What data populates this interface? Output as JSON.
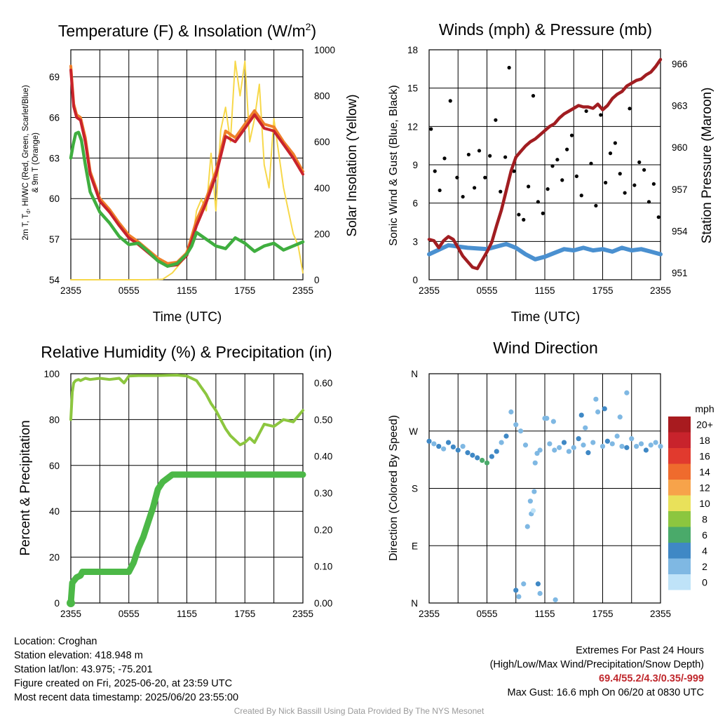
{
  "chart_data": [
    {
      "type": "line",
      "title_text": "Temperature (F) & Insolation (W/m",
      "title_sup": "2",
      "title_close": ")",
      "ylabel_left": [
        "2m T, T",
        "d",
        ", HI/WC (Red, Green, Scarlet/Blue)",
        "& 9m T (Orange)"
      ],
      "ylabel_right": "Solar Insolation (Yellow)",
      "xlabel": "Time (UTC)",
      "x_ticks": [
        "2355",
        "0555",
        "1155",
        "1755",
        "2355"
      ],
      "ylim": [
        54,
        71
      ],
      "y_ticks": [
        54,
        57,
        60,
        63,
        66,
        69
      ],
      "y2lim": [
        0,
        1000
      ],
      "y2_ticks": [
        0,
        200,
        400,
        600,
        800,
        1000
      ],
      "series": [
        {
          "axis": "left",
          "color": "#ef7f2a",
          "x": [
            0,
            0.3,
            0.6,
            1,
            1.5,
            2,
            3,
            4,
            5,
            6,
            7,
            8,
            9,
            10,
            11,
            12,
            13,
            14,
            15,
            16,
            17,
            18,
            19,
            20,
            21,
            22,
            23,
            24
          ],
          "values": [
            69.8,
            67,
            66.2,
            66,
            64.5,
            62,
            60,
            59.2,
            58.2,
            57.3,
            56.8,
            56.2,
            55.6,
            55.2,
            55.3,
            56,
            58.4,
            60,
            62,
            65,
            64.5,
            65.5,
            66.5,
            65.5,
            65.3,
            64.2,
            63.3,
            62
          ]
        },
        {
          "axis": "left",
          "color": "#c8232c",
          "x": [
            0,
            0.3,
            0.6,
            1,
            1.5,
            2,
            3,
            4,
            5,
            6,
            7,
            8,
            9,
            10,
            11,
            12,
            13,
            14,
            15,
            16,
            17,
            18,
            19,
            20,
            21,
            22,
            23,
            24
          ],
          "values": [
            69.5,
            66.8,
            66,
            65.8,
            64.2,
            61.8,
            59.8,
            59,
            58,
            57.1,
            56.6,
            56,
            55.4,
            55,
            55.1,
            55.8,
            58,
            59.7,
            61.7,
            64.6,
            64.2,
            65.2,
            66.2,
            65.2,
            65,
            64,
            63,
            61.8
          ]
        },
        {
          "axis": "left",
          "color": "#3fae3f",
          "x": [
            0,
            0.25,
            0.5,
            0.8,
            1.1,
            1.5,
            2,
            3,
            4,
            5,
            6,
            7,
            8,
            9,
            10,
            11,
            12,
            12.5,
            13,
            14,
            15,
            16,
            17,
            18,
            19,
            20,
            21,
            22,
            23,
            24
          ],
          "values": [
            63,
            64,
            64.8,
            64.9,
            64.3,
            62.5,
            60.5,
            59,
            58.2,
            57.2,
            56.6,
            56.7,
            56.1,
            55.4,
            55,
            55.2,
            55.9,
            56.5,
            57.5,
            57,
            56.5,
            56.3,
            57.1,
            56.7,
            56.1,
            56.5,
            56.7,
            56.2,
            56.5,
            56.8
          ]
        },
        {
          "axis": "right",
          "color": "#f7d84a",
          "x": [
            0,
            2,
            4,
            6,
            8,
            9.5,
            10.5,
            11.5,
            12,
            12.5,
            13,
            13.5,
            14,
            14.5,
            15,
            15.5,
            16,
            16.5,
            17,
            17.5,
            18,
            18.5,
            19,
            19.5,
            20,
            20.5,
            21,
            22,
            22.5,
            23,
            23.5,
            24
          ],
          "values": [
            0,
            0,
            0,
            0,
            0,
            2,
            30,
            80,
            130,
            150,
            300,
            350,
            300,
            550,
            300,
            650,
            750,
            600,
            950,
            800,
            950,
            600,
            700,
            850,
            500,
            400,
            700,
            400,
            300,
            200,
            150,
            30
          ]
        }
      ]
    },
    {
      "type": "scatter",
      "title": "Winds (mph) & Pressure (mb)",
      "ylabel_left": "Sonic Wind & Gust (Blue, Black)",
      "ylabel_right": "Station Pressure (Maroon)",
      "xlabel": "Time (UTC)",
      "x_ticks": [
        "2355",
        "0555",
        "1155",
        "1755",
        "2355"
      ],
      "ylim": [
        0,
        18
      ],
      "y_ticks": [
        0,
        3,
        6,
        9,
        12,
        15,
        18
      ],
      "y2lim": [
        950.5,
        967
      ],
      "y2_ticks": [
        951,
        954,
        957,
        960,
        963,
        966
      ],
      "series": [
        {
          "name": "Pressure",
          "axis": "right",
          "color": "#a11d21",
          "x": [
            0,
            0.5,
            1,
            1.5,
            2,
            2.5,
            3,
            3.5,
            4,
            4.5,
            5,
            5.5,
            6,
            6.5,
            7,
            7.5,
            8,
            8.5,
            9,
            9.5,
            10,
            10.5,
            11,
            11.5,
            12,
            12.5,
            13,
            13.5,
            14,
            14.5,
            15,
            15.5,
            16,
            16.5,
            17,
            17.5,
            18,
            18.5,
            19,
            19.5,
            20,
            20.5,
            21,
            21.5,
            22,
            22.5,
            23,
            23.5,
            24
          ],
          "values": [
            953.4,
            953.3,
            952.8,
            953.3,
            953.6,
            953.4,
            952.8,
            952.2,
            951.8,
            951.4,
            951.3,
            951.9,
            952.5,
            953.2,
            954.4,
            955.5,
            956.9,
            958.3,
            959.3,
            959.7,
            960.1,
            960.4,
            960.6,
            960.9,
            961.2,
            961.5,
            961.7,
            962.1,
            962.4,
            962.6,
            962.8,
            963,
            962.9,
            962.9,
            962.8,
            963.1,
            962.7,
            963,
            963.5,
            963.8,
            964,
            964.4,
            964.6,
            964.8,
            964.9,
            965.2,
            965.4,
            965.8,
            966.3
          ]
        },
        {
          "name": "Sonic Wind",
          "axis": "left",
          "color": "#4a90d0",
          "x": [
            0,
            2,
            4,
            6,
            8,
            9,
            10,
            11,
            12,
            13,
            14,
            15,
            16,
            17,
            18,
            19,
            20,
            21,
            22,
            23,
            24
          ],
          "values": [
            2,
            2.7,
            2.5,
            2.4,
            2.8,
            2.5,
            2,
            1.6,
            1.8,
            2.1,
            2.4,
            2.3,
            2.5,
            2.3,
            2.4,
            2.2,
            2.5,
            2.3,
            2.4,
            2.2,
            2
          ]
        },
        {
          "name": "Gust",
          "axis": "left",
          "color": "#000000",
          "x": [
            0.2,
            0.6,
            1.1,
            1.6,
            2.2,
            2.9,
            3.5,
            4.1,
            4.7,
            5.2,
            5.8,
            6.3,
            6.9,
            7.4,
            7.9,
            8.3,
            8.8,
            9.3,
            9.8,
            10.3,
            10.8,
            11.3,
            11.8,
            12.3,
            12.8,
            13.3,
            13.8,
            14.3,
            14.8,
            15.3,
            15.8,
            16.3,
            16.8,
            17.3,
            17.8,
            18.3,
            18.8,
            19.3,
            19.8,
            20.3,
            20.8,
            21.3,
            21.8,
            22.3,
            22.8,
            23.3,
            23.8
          ],
          "values": [
            11.8,
            8.5,
            7,
            9.5,
            14,
            8,
            6.5,
            9.8,
            7.2,
            10.1,
            8,
            9.7,
            12.5,
            6.9,
            9.6,
            16.6,
            8.5,
            5.1,
            4.7,
            7.3,
            14.4,
            6.1,
            5.2,
            7.1,
            8.9,
            9.4,
            7.8,
            10.2,
            11.3,
            8.1,
            6.6,
            13.2,
            9.1,
            5.8,
            12.9,
            7.6,
            9.9,
            10.7,
            8.3,
            6.8,
            13.4,
            7.4,
            9.2,
            8.6,
            6.1,
            7.5,
            4.9
          ]
        }
      ]
    },
    {
      "type": "line",
      "title": "Relative Humidity (%) & Precipitation (in)",
      "ylabel_left": "Percent & Precipitation",
      "x_ticks": [
        "2355",
        "0555",
        "1155",
        "1755",
        "2355"
      ],
      "ylim": [
        0,
        100
      ],
      "y_ticks": [
        0,
        20,
        40,
        60,
        80,
        100
      ],
      "y2lim": [
        0,
        0.625
      ],
      "y2_ticks": [
        "0.00",
        "0.10",
        "0.20",
        "0.30",
        "0.40",
        "0.50",
        "0.60"
      ],
      "series": [
        {
          "name": "Relative Humidity",
          "axis": "left",
          "color": "#8cc63f",
          "x": [
            0,
            0.15,
            0.3,
            0.5,
            0.8,
            1,
            1.5,
            2,
            3,
            4,
            5,
            5.5,
            6,
            7,
            8,
            9,
            10,
            11,
            12,
            13,
            13.5,
            14,
            14.5,
            15,
            15.5,
            16,
            16.5,
            17,
            17.5,
            18,
            18.5,
            19,
            19.5,
            20,
            21,
            22,
            23,
            24
          ],
          "values": [
            80,
            92,
            96,
            97,
            97.5,
            97,
            98,
            97.5,
            98,
            97.5,
            98,
            96,
            99,
            99.2,
            99.2,
            99.2,
            99.3,
            99.4,
            99,
            97,
            94,
            91,
            87,
            84,
            80,
            76,
            73,
            71,
            69,
            70,
            72,
            70,
            74,
            78,
            77,
            80,
            79,
            84
          ]
        },
        {
          "name": "Precipitation",
          "axis": "right",
          "color": "#4cb847",
          "x": [
            0,
            0.15,
            0.3,
            0.6,
            1,
            1.2,
            2,
            3,
            4,
            5,
            6,
            6.5,
            7,
            7.5,
            8,
            8.5,
            9,
            9.5,
            10,
            10.5,
            11,
            12,
            13,
            14,
            15,
            16,
            17,
            18,
            19,
            20,
            21,
            22,
            23,
            24
          ],
          "values": [
            0,
            0.055,
            0.06,
            0.07,
            0.075,
            0.085,
            0.085,
            0.085,
            0.085,
            0.085,
            0.085,
            0.11,
            0.15,
            0.18,
            0.22,
            0.26,
            0.31,
            0.33,
            0.34,
            0.35,
            0.35,
            0.35,
            0.35,
            0.35,
            0.35,
            0.35,
            0.35,
            0.35,
            0.35,
            0.35,
            0.35,
            0.35,
            0.35,
            0.35
          ]
        }
      ]
    },
    {
      "type": "scatter",
      "title": "Wind Direction",
      "ylabel_left": "Direction (Colored By Speed)",
      "x_ticks": [
        "2355",
        "0555",
        "1155",
        "1755",
        "2355"
      ],
      "y_ticks": [
        "N",
        "E",
        "S",
        "W",
        "N"
      ],
      "ylim": [
        0,
        360
      ],
      "legend_title": "mph",
      "legend_labels": [
        "20+",
        "18",
        "16",
        "14",
        "12",
        "10",
        "8",
        "6",
        "4",
        "2",
        "0"
      ],
      "legend_colors": [
        "#a81b1f",
        "#c8232c",
        "#e13a2e",
        "#ef6b2d",
        "#f7a34a",
        "#e9e15a",
        "#8cc63f",
        "#4aaa6a",
        "#3f88c5",
        "#7fb8e3",
        "#bfe3f8"
      ],
      "series": [
        {
          "name": "Direction",
          "x": [
            0,
            0.5,
            1,
            1.5,
            2,
            2.5,
            3,
            3.5,
            4,
            4.5,
            5,
            5.5,
            6,
            6.5,
            7,
            7.5,
            8,
            8.5,
            9,
            9.5,
            10,
            10.5,
            11,
            11.5,
            12,
            12.5,
            13,
            13.5,
            14,
            14.5,
            15,
            15.5,
            16,
            16.5,
            17,
            17.5,
            18,
            18.5,
            19,
            19.5,
            20,
            20.5,
            21,
            21.5,
            22,
            22.5,
            23,
            23.5,
            24
          ],
          "values": [
            254,
            250,
            246,
            242,
            252,
            245,
            240,
            246,
            236,
            232,
            228,
            224,
            220,
            230,
            238,
            252,
            262,
            300,
            280,
            270,
            248,
            160,
            220,
            240,
            290,
            250,
            240,
            244,
            252,
            238,
            244,
            258,
            248,
            236,
            252,
            300,
            246,
            254,
            250,
            262,
            246,
            244,
            258,
            246,
            250,
            240,
            248,
            252,
            246
          ],
          "speed": [
            3,
            2.5,
            3,
            2,
            3,
            3.5,
            3,
            2.5,
            4,
            4.5,
            4.5,
            5,
            5,
            4,
            3,
            2.5,
            3,
            2,
            2,
            1.5,
            2.5,
            1,
            2,
            2.5,
            1.5,
            2,
            2.5,
            2,
            3,
            2.5,
            2,
            3,
            2.5,
            3,
            2,
            1.5,
            2.5,
            3,
            2,
            2.5,
            2,
            3,
            2.5,
            2,
            2.5,
            3,
            2,
            2.5,
            2
          ]
        },
        {
          "name": "Outliers",
          "x": [
            9,
            9.3,
            9.8,
            10.2,
            10.6,
            10.8,
            10.9,
            11.2,
            11.3,
            11.5,
            12.2,
            12.9,
            13.1,
            15.8,
            16.2,
            17.3,
            18.2,
            19.8,
            20.5
          ],
          "values": [
            20,
            10,
            30,
            120,
            140,
            145,
            175,
            235,
            30,
            15,
            290,
            285,
            5,
            295,
            275,
            320,
            305,
            292,
            330
          ],
          "speed": [
            3,
            1,
            2.5,
            2,
            1,
            0.5,
            1.5,
            2,
            3,
            2,
            2.5,
            1,
            2,
            3,
            2,
            2.5,
            3,
            2,
            2
          ]
        }
      ]
    }
  ],
  "info": {
    "location": "Location: Croghan",
    "elevation": "Station elevation: 418.948 m",
    "latlon": "Station lat/lon: 43.975; -75.201",
    "created": "Figure created on Fri, 2025-06-20, at 23:59 UTC",
    "recent": "Most recent data timestamp: 2025/06/20 23:55:00"
  },
  "extremes": {
    "heading": "Extremes For Past 24 Hours",
    "subheading": "(High/Low/Max Wind/Precipitation/Snow Depth)",
    "values": "69.4/55.2/4.3/0.35/-999",
    "gust": "Max Gust: 16.6 mph On 06/20 at 0830 UTC"
  },
  "credit": "Created By Nick Bassill Using Data Provided By The NYS Mesonet"
}
